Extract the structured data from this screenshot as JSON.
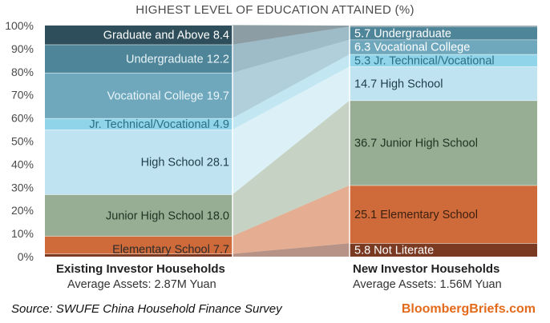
{
  "title": "HIGHEST LEVEL OF EDUCATION ATTAINED (%)",
  "source": "Source: SWUFE China Household Finance Survey",
  "brand": "BloombergBriefs.com",
  "groups": [
    {
      "label": "Existing Investor Households",
      "sublabel": "Average Assets: 2.87M Yuan"
    },
    {
      "label": "New Investor Households",
      "sublabel": "Average Assets: 1.56M Yuan"
    }
  ],
  "chart_data": {
    "type": "stacked-bar",
    "title": "HIGHEST LEVEL OF EDUCATION ATTAINED (%)",
    "ylim": [
      0,
      100
    ],
    "yticks": [
      "0%",
      "10%",
      "20%",
      "30%",
      "40%",
      "50%",
      "60%",
      "70%",
      "80%",
      "90%",
      "100%"
    ],
    "categories": [
      "Existing Investor Households",
      "New Investor Households"
    ],
    "series": [
      {
        "name": "Not Literate",
        "values": [
          1.2,
          5.8
        ],
        "color": "#7a3a22",
        "labels": [
          "",
          "5.8 Not Literate"
        ]
      },
      {
        "name": "Elementary School",
        "values": [
          7.7,
          25.1
        ],
        "color": "#cf6b3a",
        "labels": [
          "Elementary School 7.7",
          "25.1 Elementary School"
        ]
      },
      {
        "name": "Junior High School",
        "values": [
          18.0,
          36.7
        ],
        "color": "#97ae94",
        "labels": [
          "Junior High School 18.0",
          "36.7 Junior High School"
        ]
      },
      {
        "name": "High School",
        "values": [
          28.1,
          14.7
        ],
        "color": "#bfe3f1",
        "labels": [
          "High School 28.1",
          "14.7 High School"
        ]
      },
      {
        "name": "Jr. Technical/Vocational",
        "values": [
          4.9,
          5.3
        ],
        "color": "#8fd4e8",
        "labels": [
          "Jr. Technical/Vocational 4.9",
          "5.3 Jr. Technical/Vocational"
        ]
      },
      {
        "name": "Vocational College",
        "values": [
          19.7,
          6.3
        ],
        "color": "#6fa8bd",
        "labels": [
          "Vocational College 19.7",
          "6.3 Vocational College"
        ]
      },
      {
        "name": "Undergraduate",
        "values": [
          12.2,
          5.7
        ],
        "color": "#4e8599",
        "labels": [
          "Undergraduate 12.2",
          "5.7 Undergraduate"
        ]
      },
      {
        "name": "Graduate and Above",
        "values": [
          8.4,
          0.4
        ],
        "color": "#2d4e5a",
        "labels": [
          "Graduate and Above 8.4",
          ""
        ]
      }
    ]
  }
}
